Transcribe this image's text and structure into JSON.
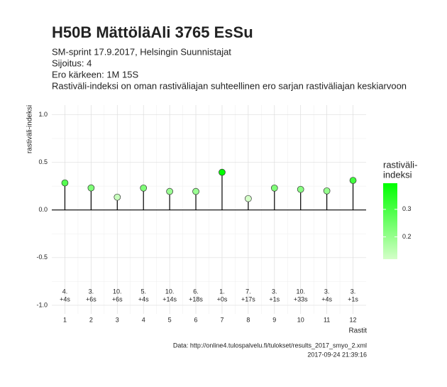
{
  "chart_data": {
    "type": "lollipop",
    "title": "H50B MättöläAli 3765 EsSu",
    "subtitle": [
      "SM-sprint 17.9.2017, Helsingin Suunnistajat",
      "Sijoitus: 4",
      "Ero kärkeen: 1M 15S",
      "Rastiväli-indeksi on oman rastiväliajan suhteellinen ero sarjan rastiväliajan keskiarvoon"
    ],
    "y_label": "rastiväli-indeksi",
    "x_label": "Rastit",
    "x": [
      1,
      2,
      3,
      4,
      5,
      6,
      7,
      8,
      9,
      10,
      11,
      12
    ],
    "values": [
      0.284,
      0.231,
      0.134,
      0.23,
      0.194,
      0.194,
      0.395,
      0.119,
      0.23,
      0.216,
      0.2,
      0.31
    ],
    "point_labels": [
      [
        "4.",
        "+4s"
      ],
      [
        "3.",
        "+6s"
      ],
      [
        "10.",
        "+6s"
      ],
      [
        "5.",
        "+4s"
      ],
      [
        "10.",
        "+14s"
      ],
      [
        "6.",
        "+18s"
      ],
      [
        "1.",
        "+0s"
      ],
      [
        "7.",
        "+17s"
      ],
      [
        "3.",
        "+1s"
      ],
      [
        "10.",
        "+33s"
      ],
      [
        "3.",
        "+4s"
      ],
      [
        "3.",
        "+1s"
      ]
    ],
    "xlim": [
      0.5,
      12.5
    ],
    "xticks": [
      1,
      2,
      3,
      4,
      5,
      6,
      7,
      8,
      9,
      10,
      11,
      12
    ],
    "ylim": [
      -1.09,
      1.1
    ],
    "yticks": [
      -1.0,
      -0.5,
      0.0,
      0.5,
      1.0
    ],
    "ytick_labels": [
      "-1.0",
      "-0.5",
      "0.0",
      "0.5",
      "1.0"
    ],
    "reference_line": 0,
    "grid": true,
    "color_low": "#d4ffc8",
    "color_high": "#00ff00",
    "legend_title": [
      "rastiväli-",
      "indeksi"
    ],
    "legend_ticks": [
      0.2,
      0.3
    ],
    "caption": [
      "Data: http://online4.tulospalvelu.fi/tulokset/results_2017_smyo_2.xml",
      "2017-09-24 21:39:16"
    ]
  }
}
